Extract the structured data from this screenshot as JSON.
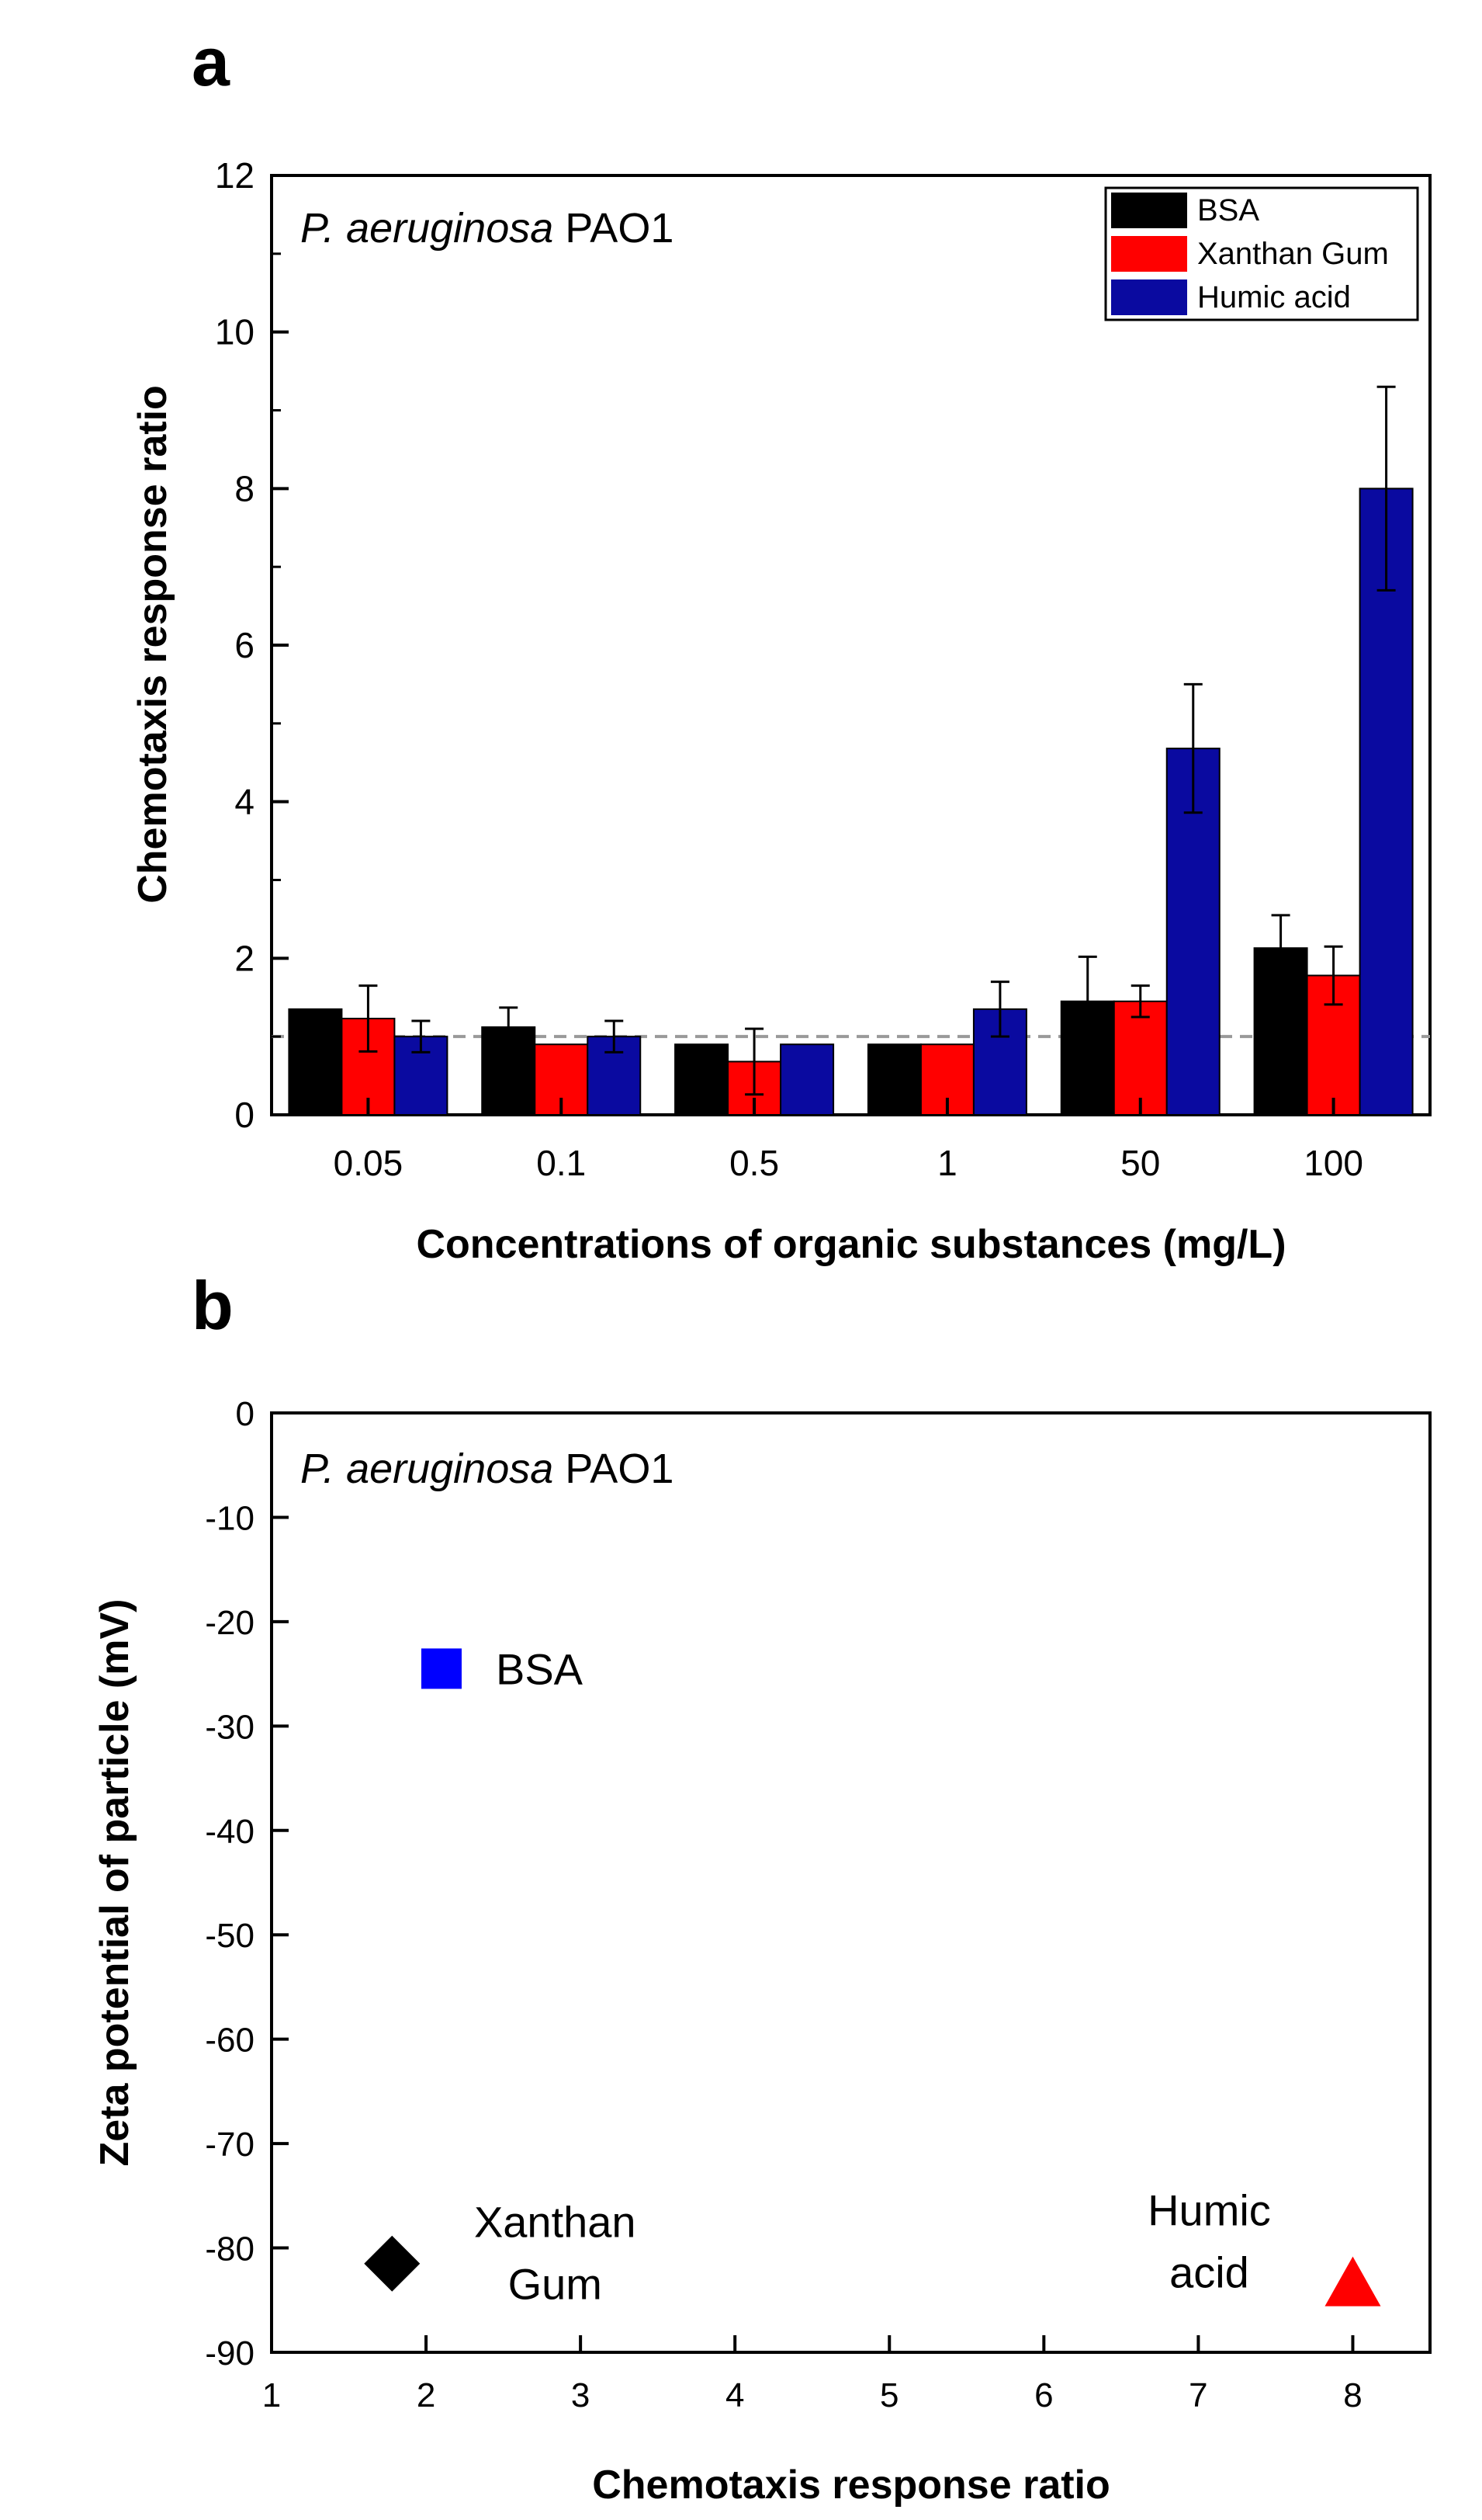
{
  "chart_data": [
    {
      "panel": "a",
      "type": "bar",
      "annotation_prefix": "P. aeruginosa",
      "annotation_suffix": "PAO1",
      "xlabel": "Concentrations of organic substances (mg/L)",
      "ylabel": "Chemotaxis response ratio",
      "ylim": [
        0,
        12
      ],
      "yticks": [
        0,
        2,
        4,
        6,
        8,
        10,
        12
      ],
      "categories": [
        "0.05",
        "0.1",
        "0.5",
        "1",
        "50",
        "100"
      ],
      "reference_line": 1,
      "legend": "top-right",
      "series": [
        {
          "name": "BSA",
          "color": "#000000",
          "values": [
            1.35,
            1.12,
            0.9,
            0.9,
            1.45,
            2.13
          ],
          "errors": [
            0,
            0.25,
            0,
            0,
            0.57,
            0.42
          ]
        },
        {
          "name": "Xanthan Gum",
          "color": "#ff0000",
          "values": [
            1.23,
            0.9,
            0.68,
            0.9,
            1.45,
            1.78
          ],
          "errors": [
            0.42,
            0,
            0.42,
            0,
            0.2,
            0.37
          ]
        },
        {
          "name": "Humic acid",
          "color": "#0a0aa0",
          "values": [
            1.0,
            1.0,
            0.9,
            1.35,
            4.68,
            8.0
          ],
          "errors": [
            0.2,
            0.2,
            0,
            0.35,
            0.82,
            1.3
          ]
        }
      ]
    },
    {
      "panel": "b",
      "type": "scatter",
      "annotation_prefix": "P. aeruginosa",
      "annotation_suffix": "PAO1",
      "xlabel": "Chemotaxis response ratio",
      "ylabel": "Zeta potential of particle (mV)",
      "xlim": [
        1,
        8.5
      ],
      "ylim": [
        -90,
        0
      ],
      "xticks": [
        1,
        2,
        3,
        4,
        5,
        6,
        7,
        8
      ],
      "yticks": [
        0,
        -10,
        -20,
        -30,
        -40,
        -50,
        -60,
        -70,
        -80,
        -90
      ],
      "points": [
        {
          "label_lines": [
            "BSA"
          ],
          "x": 2.1,
          "y": -24.5,
          "marker": "square",
          "color": "#0000ff"
        },
        {
          "label_lines": [
            "Xanthan",
            "Gum"
          ],
          "x": 1.78,
          "y": -81.5,
          "marker": "diamond",
          "color": "#000000"
        },
        {
          "label_lines": [
            "Humic",
            "acid"
          ],
          "x": 8.0,
          "y": -83.5,
          "marker": "triangle",
          "color": "#ff0000"
        }
      ]
    }
  ]
}
